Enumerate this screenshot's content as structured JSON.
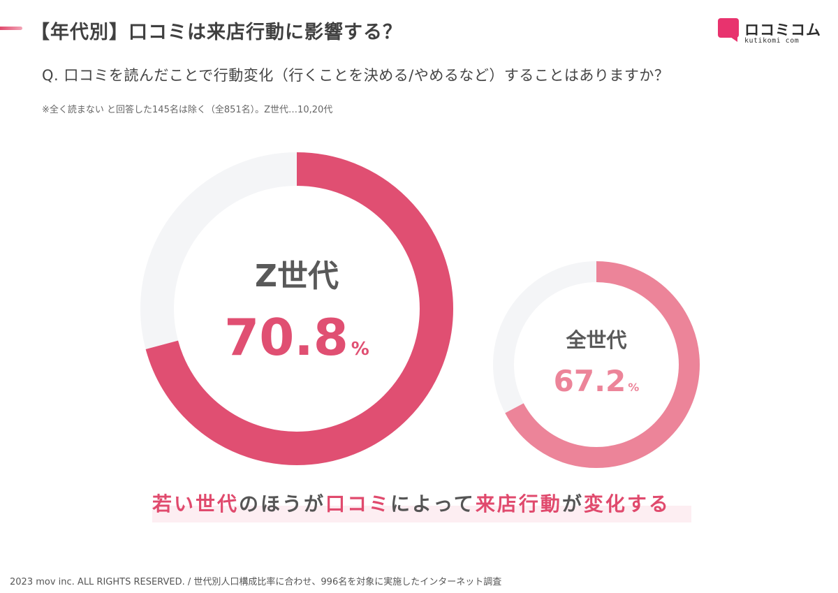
{
  "header": {
    "title": "【年代別】口コミは来店行動に影響する？"
  },
  "logo": {
    "name": "ロコミコム",
    "sub": "kutikomi com",
    "color": "#e8336e"
  },
  "question": "Q. 口コミを読んだことで行動変化（行くことを決める/やめるなど）することはありますか？",
  "note": "※全く読まない と回答した145名は除く（全851名）。Z世代…10,20代",
  "chart_data": [
    {
      "type": "pie",
      "variant": "donut",
      "label": "Z世代",
      "value": 70.8,
      "remainder": 29.2,
      "unit": "%",
      "value_text": "70.8",
      "color": "#e04f72",
      "track_color": "#f4f5f7"
    },
    {
      "type": "pie",
      "variant": "donut",
      "label": "全世代",
      "value": 67.2,
      "remainder": 32.8,
      "unit": "%",
      "value_text": "67.2",
      "color": "#ec8499",
      "track_color": "#f4f5f7"
    }
  ],
  "conclusion": {
    "segments": [
      {
        "text": "若い世代",
        "color": "pink"
      },
      {
        "text": "のほうが",
        "color": "gray"
      },
      {
        "text": "口コミ",
        "color": "pink"
      },
      {
        "text": "によって",
        "color": "gray"
      },
      {
        "text": "来店行動",
        "color": "pink"
      },
      {
        "text": "が",
        "color": "gray"
      },
      {
        "text": "変化する",
        "color": "pink"
      }
    ]
  },
  "footer": "2023 mov inc. ALL RIGHTS RESERVED. / 世代別人口構成比率に合わせ、996名を対象に実施したインターネット調査"
}
